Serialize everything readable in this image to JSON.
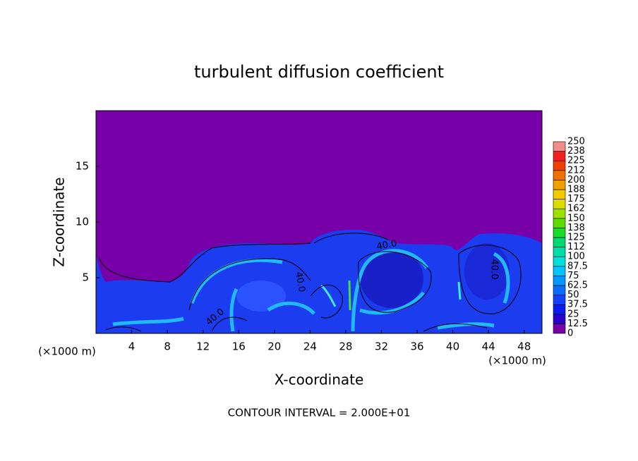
{
  "chart_data": {
    "type": "contour",
    "title": "turbulent diffusion coefficient",
    "x_label": "X-coordinate",
    "y_label": "Z-coordinate",
    "x_unit": "(×1000 m)",
    "footer": "CONTOUR INTERVAL = 2.000E+01",
    "xlim": [
      0,
      50
    ],
    "ylim": [
      0,
      20
    ],
    "xticks": [
      4,
      8,
      12,
      16,
      20,
      24,
      28,
      32,
      36,
      40,
      44,
      48
    ],
    "yticks": [
      5,
      10,
      15
    ],
    "contour_labels": [
      {
        "value": 40,
        "label": "40.0"
      },
      {
        "value": 40,
        "label": "40.0"
      },
      {
        "value": 40,
        "label": "40.0"
      },
      {
        "value": 40,
        "label": "40.0"
      }
    ],
    "colorbar": {
      "clim": [
        0,
        250
      ],
      "ticks": [
        0,
        12.5,
        25,
        37.5,
        50,
        62.5,
        75,
        87.5,
        100,
        {
          "value": 112.5,
          "label": "112"
        },
        125,
        {
          "value": 137.5,
          "label": "138"
        },
        150,
        {
          "value": 162.5,
          "label": "162"
        },
        175,
        {
          "value": 187.5,
          "label": "188"
        },
        200,
        {
          "value": 212.5,
          "label": "212"
        },
        225,
        {
          "value": 237.5,
          "label": "238"
        },
        250
      ],
      "colors": [
        "#7800a8",
        "#2a00cc",
        "#0a1cf0",
        "#1440ff",
        "#0a6cff",
        "#0098ff",
        "#00c4ff",
        "#00e0dc",
        "#00dcaa",
        "#00d870",
        "#18dc28",
        "#5cdc00",
        "#a0e000",
        "#dcdc00",
        "#f0cc00",
        "#f0a000",
        "#f07000",
        "#f04000",
        "#f02020",
        "#f08c8c"
      ]
    }
  }
}
